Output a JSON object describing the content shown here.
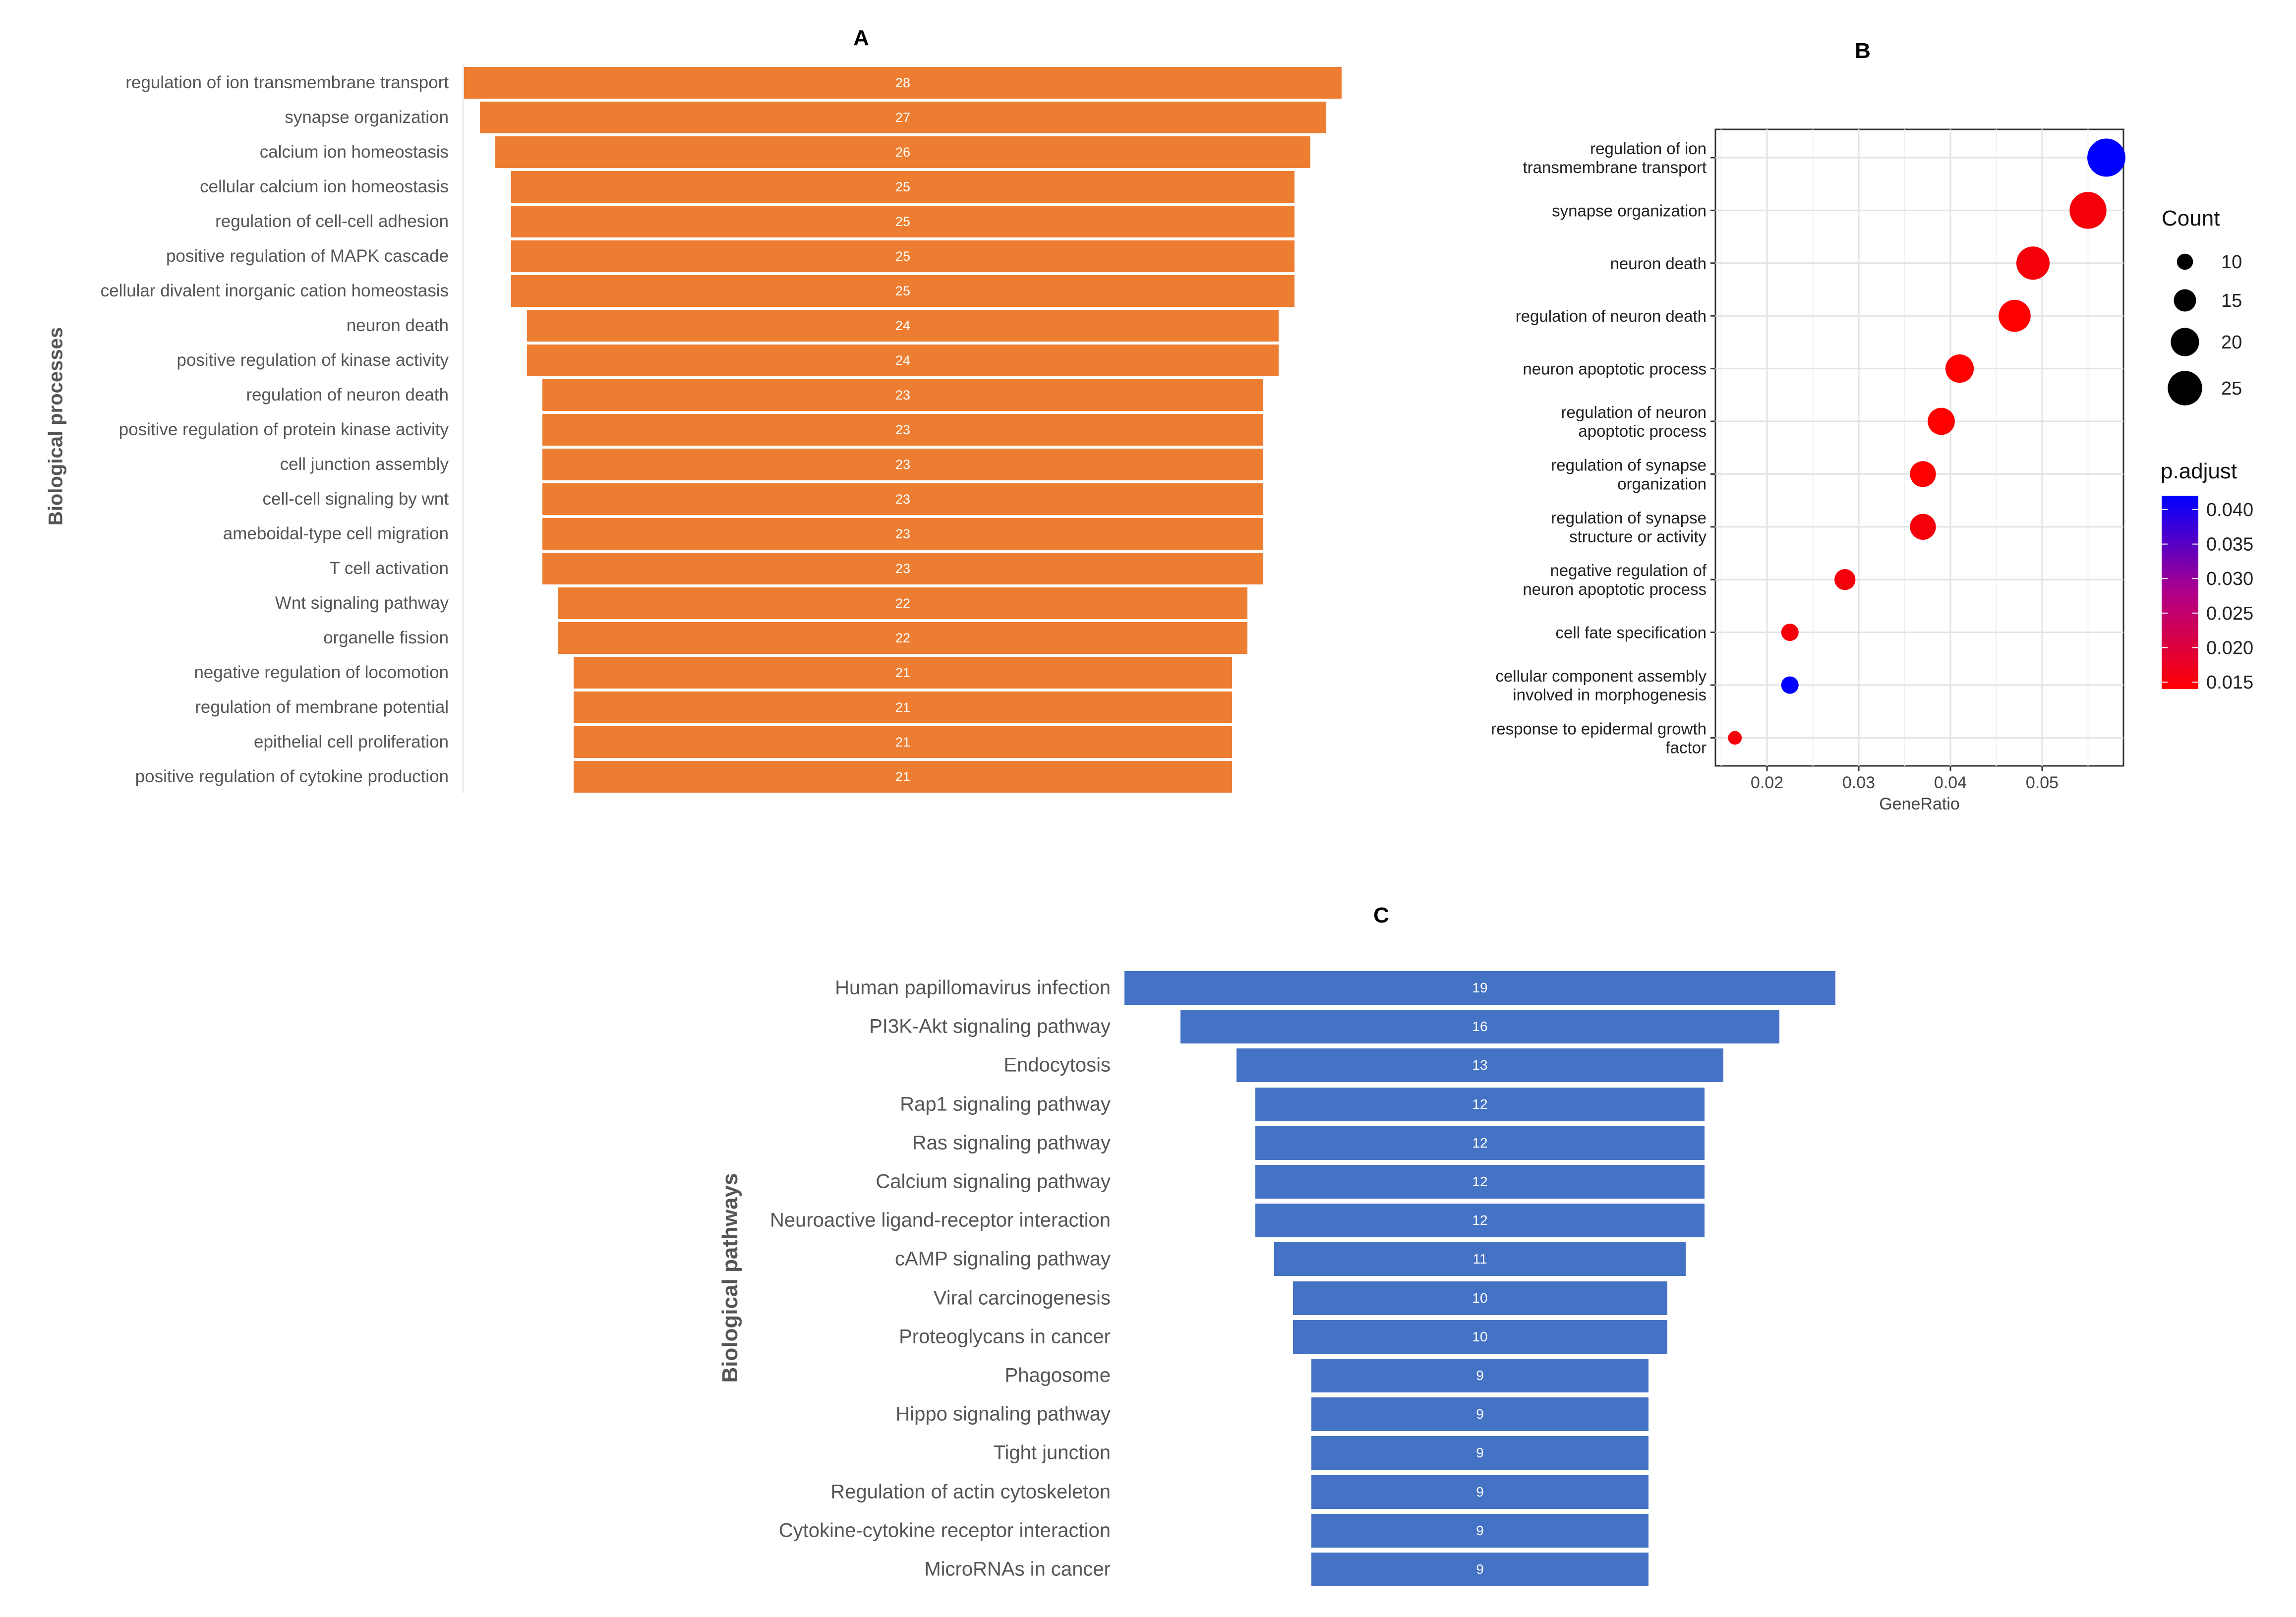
{
  "chart_data": [
    {
      "panel": "A",
      "type": "bar",
      "orientation": "horizontal",
      "title": "A",
      "ylabel": "Biological processes",
      "color": "#ED7D31",
      "categories": [
        "regulation of ion transmembrane transport",
        "synapse organization",
        "calcium ion homeostasis",
        "cellular calcium ion homeostasis",
        "regulation of cell-cell adhesion",
        "positive regulation of MAPK cascade",
        "cellular divalent inorganic cation homeostasis",
        "neuron death",
        "positive regulation of kinase activity",
        "regulation of neuron death",
        "positive regulation of protein kinase activity",
        "cell junction assembly",
        "cell-cell signaling by wnt",
        "ameboidal-type cell migration",
        "T cell activation",
        "Wnt signaling pathway",
        "organelle fission",
        "negative regulation of locomotion",
        "regulation of membrane potential",
        "epithelial cell proliferation",
        "positive regulation of cytokine production"
      ],
      "values": [
        28,
        27,
        26,
        25,
        25,
        25,
        25,
        24,
        24,
        23,
        23,
        23,
        23,
        23,
        23,
        22,
        22,
        21,
        21,
        21,
        21
      ]
    },
    {
      "panel": "B",
      "type": "scatter",
      "title": "B",
      "xlabel": "GeneRatio",
      "xlim": [
        0.0145,
        0.059
      ],
      "xticks": [
        "0.02",
        "0.03",
        "0.04",
        "0.05"
      ],
      "grid": true,
      "categories": [
        "regulation of ion\ntransmembrane transport",
        "synapse organization",
        "neuron death",
        "regulation of neuron death",
        "neuron apoptotic process",
        "regulation of neuron\napoptotic process",
        "regulation of synapse\norganization",
        "regulation of synapse\nstructure or activity",
        "negative regulation of\nneuron apoptotic process",
        "cell fate specification",
        "cellular component assembly\ninvolved in morphogenesis",
        "response to epidermal growth\nfactor"
      ],
      "x": [
        0.057,
        0.055,
        0.049,
        0.047,
        0.041,
        0.039,
        0.037,
        0.037,
        0.0285,
        0.0225,
        0.0225,
        0.0165
      ],
      "count": [
        28,
        27,
        24,
        23,
        20,
        19,
        18,
        18,
        14,
        11,
        11,
        8
      ],
      "p_adjust": [
        0.041,
        0.016,
        0.016,
        0.015,
        0.015,
        0.015,
        0.015,
        0.016,
        0.016,
        0.016,
        0.041,
        0.016
      ],
      "legend_count": {
        "title": "Count",
        "entries": [
          "10",
          "15",
          "20",
          "25"
        ]
      },
      "legend_color": {
        "title": "p.adjust",
        "ticks": [
          "0.040",
          "0.035",
          "0.030",
          "0.025",
          "0.020",
          "0.015"
        ],
        "low_color": "#FF0000",
        "high_color": "#0000FF"
      },
      "legend_position": "right"
    },
    {
      "panel": "C",
      "type": "bar",
      "orientation": "horizontal",
      "title": "C",
      "ylabel": "Biological pathways",
      "color": "#4472C4",
      "categories": [
        "Human papillomavirus infection",
        "PI3K-Akt signaling pathway",
        "Endocytosis",
        "Rap1 signaling pathway",
        "Ras signaling pathway",
        "Calcium signaling pathway",
        "Neuroactive ligand-receptor interaction",
        "cAMP signaling pathway",
        "Viral carcinogenesis",
        "Proteoglycans in cancer",
        "Phagosome",
        "Hippo signaling pathway",
        "Tight junction",
        "Regulation of actin cytoskeleton",
        "Cytokine-cytokine receptor interaction",
        "MicroRNAs in cancer"
      ],
      "values": [
        19,
        16,
        13,
        12,
        12,
        12,
        12,
        11,
        10,
        10,
        9,
        9,
        9,
        9,
        9,
        9
      ]
    }
  ]
}
